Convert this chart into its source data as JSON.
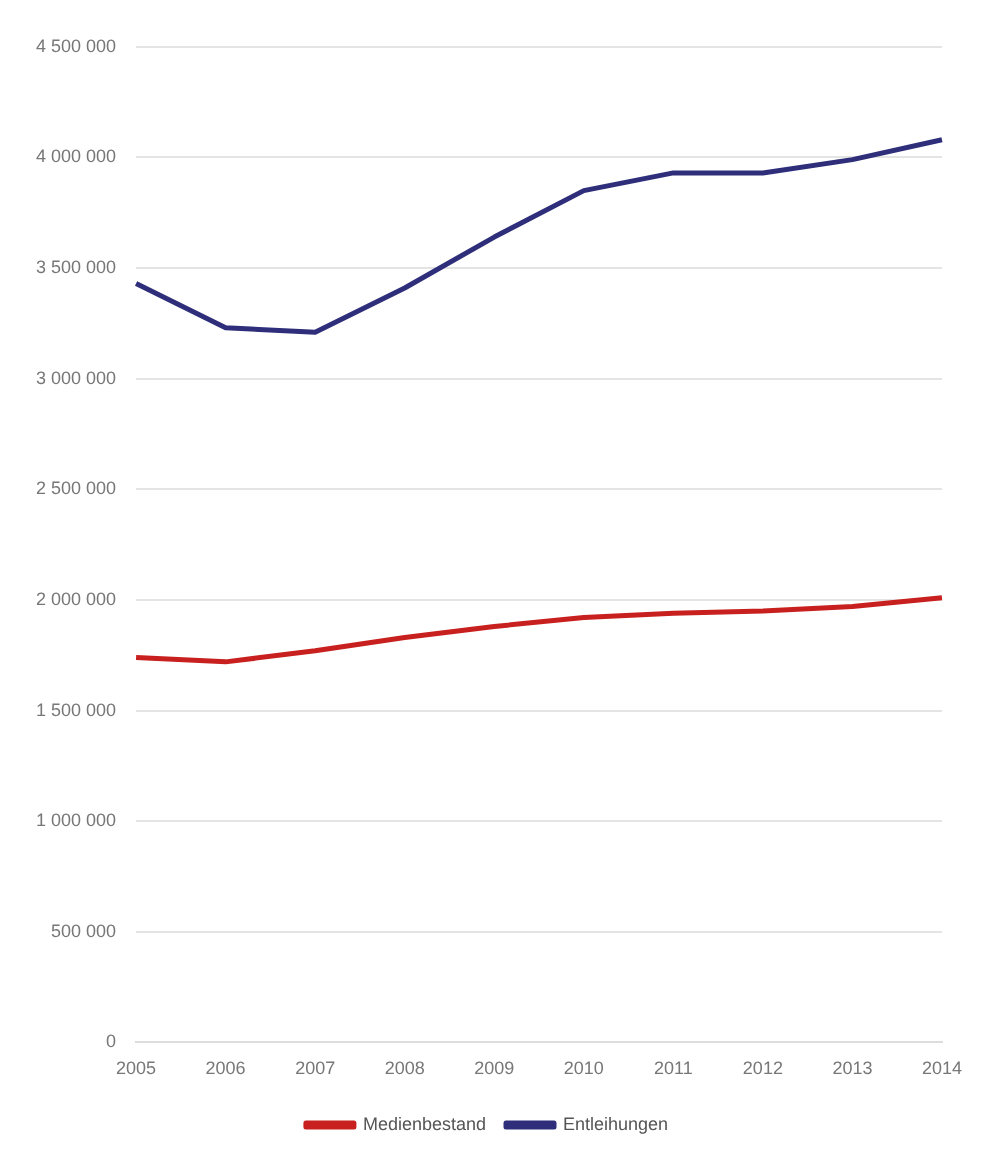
{
  "chart_data": {
    "type": "line",
    "categories": [
      "2005",
      "2006",
      "2007",
      "2008",
      "2009",
      "2010",
      "2011",
      "2012",
      "2013",
      "2014"
    ],
    "series": [
      {
        "name": "Medienbestand",
        "color": "#c8201e",
        "values": [
          1740000,
          1720000,
          1770000,
          1830000,
          1880000,
          1920000,
          1940000,
          1950000,
          1970000,
          2010000
        ]
      },
      {
        "name": "Entleihungen",
        "color": "#2e2e7a",
        "values": [
          3430000,
          3230000,
          3210000,
          3410000,
          3640000,
          3850000,
          3930000,
          3930000,
          3990000,
          4080000
        ]
      }
    ],
    "ylim": [
      0,
      4500000
    ],
    "yticks": [
      {
        "value": 0,
        "label": "0"
      },
      {
        "value": 500000,
        "label": "500 000"
      },
      {
        "value": 1000000,
        "label": "1 000 000"
      },
      {
        "value": 1500000,
        "label": "1 500 000"
      },
      {
        "value": 2000000,
        "label": "2 000 000"
      },
      {
        "value": 2500000,
        "label": "2 500 000"
      },
      {
        "value": 3000000,
        "label": "3 000 000"
      },
      {
        "value": 3500000,
        "label": "3 500 000"
      },
      {
        "value": 4000000,
        "label": "4 000 000"
      },
      {
        "value": 4500000,
        "label": "4 500 000"
      }
    ],
    "grid": "y",
    "legend": "bottom",
    "marker": "none",
    "line_style": "solid"
  }
}
